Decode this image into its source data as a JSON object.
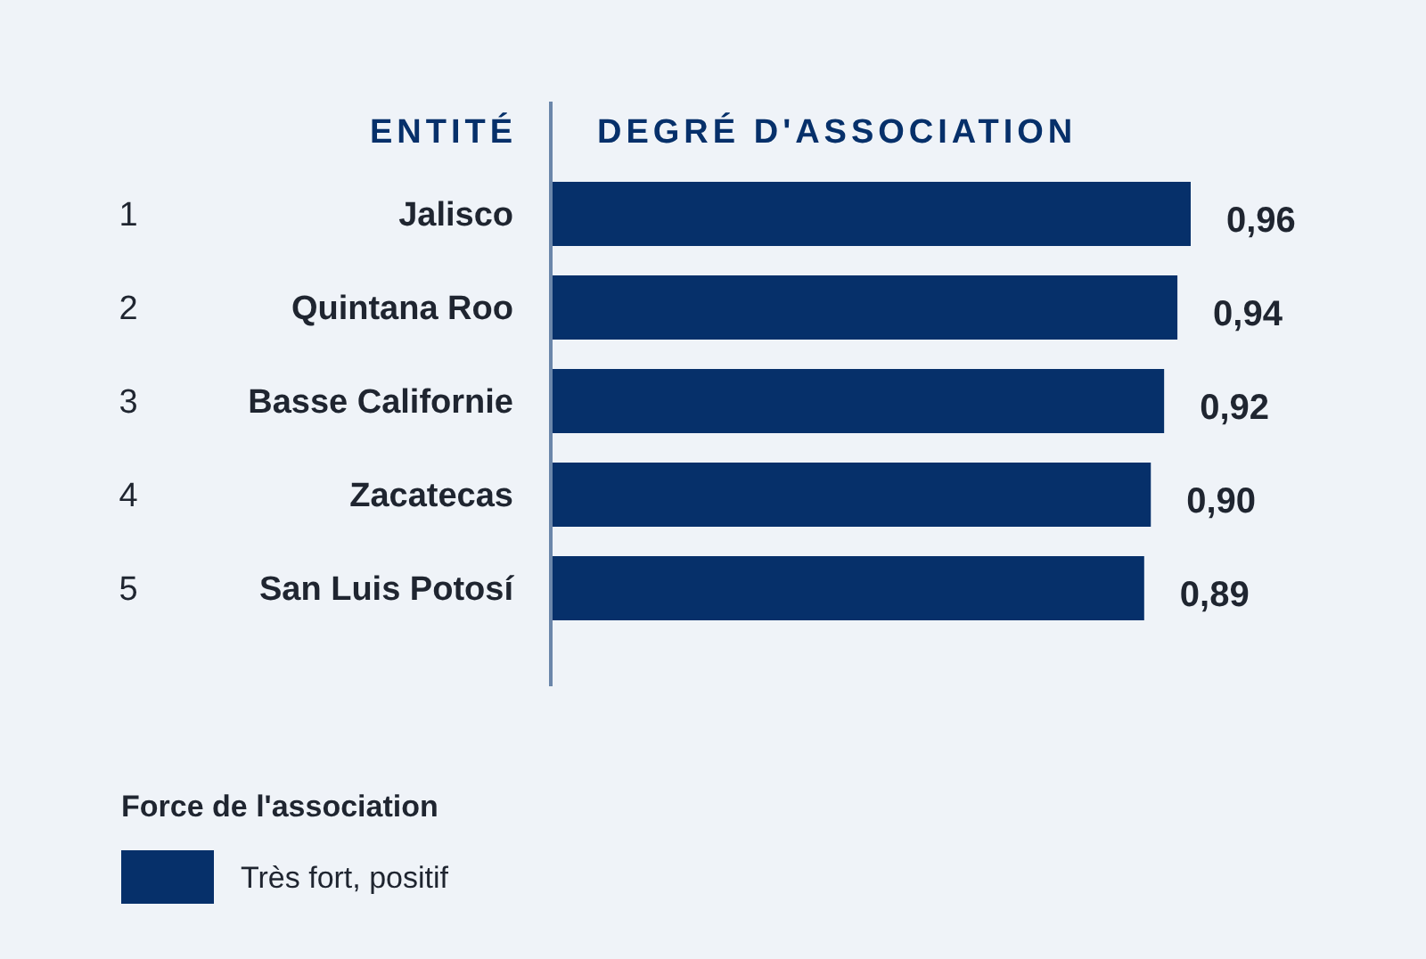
{
  "chart_data": {
    "type": "bar",
    "orientation": "horizontal",
    "xlabel": "DEGRÉ D'ASSOCIATION",
    "ylabel": "ENTITÉ",
    "categories": [
      "Jalisco",
      "Quintana Roo",
      "Basse Californie",
      "Zacatecas",
      "San Luis Potosí"
    ],
    "series": [
      {
        "name": "Très fort, positif",
        "color": "#06306a",
        "values": [
          0.96,
          0.94,
          0.92,
          0.9,
          0.89
        ],
        "value_labels": [
          "0,96",
          "0,94",
          "0,92",
          "0,90",
          "0,89"
        ]
      }
    ],
    "annotations": [
      "1",
      "2",
      "3",
      "4",
      "5"
    ],
    "legend_title": "Force de l'association",
    "legend": "bottom left"
  }
}
